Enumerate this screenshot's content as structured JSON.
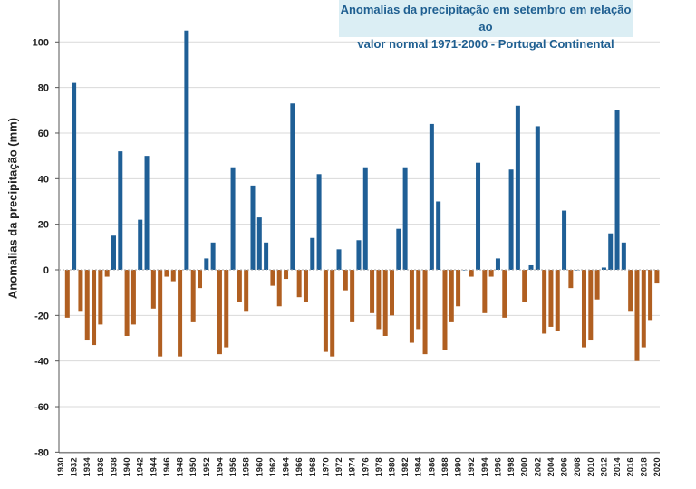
{
  "chart_data": {
    "type": "bar",
    "title_line1": "Anomalias da precipitação em setembro em relação ao",
    "title_line2": "valor normal  1971-2000 - Portugal Continental",
    "ylabel": "Anomalias da precipitação (mm)",
    "xlabel": "",
    "ylim": [
      -80,
      110
    ],
    "yticks": [
      100,
      80,
      60,
      40,
      20,
      0,
      -20,
      -40,
      -60,
      -80
    ],
    "xtick_labels": [
      "1930",
      "1932",
      "1934",
      "1936",
      "1938",
      "1940",
      "1942",
      "1944",
      "1946",
      "1948",
      "1950",
      "1952",
      "1954",
      "1956",
      "1958",
      "1960",
      "1962",
      "1964",
      "1966",
      "1968",
      "1970",
      "1972",
      "1974",
      "1976",
      "1978",
      "1980",
      "1982",
      "1984",
      "1986",
      "1988",
      "1990",
      "1992",
      "1994",
      "1996",
      "1998",
      "2000",
      "2002",
      "2004",
      "2006",
      "2008",
      "2010",
      "2012",
      "2014",
      "2016",
      "2018",
      "2020"
    ],
    "grid": true,
    "positive_color": "#1f5f96",
    "negative_color": "#b05f21",
    "years": [
      1931,
      1932,
      1933,
      1934,
      1935,
      1936,
      1937,
      1938,
      1939,
      1940,
      1941,
      1942,
      1943,
      1944,
      1945,
      1946,
      1947,
      1948,
      1949,
      1950,
      1951,
      1952,
      1953,
      1954,
      1955,
      1956,
      1957,
      1958,
      1959,
      1960,
      1961,
      1962,
      1963,
      1964,
      1965,
      1966,
      1967,
      1968,
      1969,
      1970,
      1971,
      1972,
      1973,
      1974,
      1975,
      1976,
      1977,
      1978,
      1979,
      1980,
      1981,
      1982,
      1983,
      1984,
      1985,
      1986,
      1987,
      1988,
      1989,
      1990,
      1991,
      1992,
      1993,
      1994,
      1995,
      1996,
      1997,
      1998,
      1999,
      2000,
      2001,
      2002,
      2003,
      2004,
      2005,
      2006,
      2007,
      2008,
      2009,
      2010,
      2011,
      2012,
      2013,
      2014,
      2015,
      2016,
      2017,
      2018,
      2019,
      2020
    ],
    "values": [
      -21,
      82,
      -18,
      -31,
      -33,
      -24,
      -3,
      15,
      52,
      -29,
      -24,
      22,
      50,
      -17,
      -38,
      -3,
      -5,
      -38,
      105,
      -23,
      -8,
      5,
      12,
      -37,
      -34,
      45,
      -14,
      -18,
      37,
      23,
      12,
      -7,
      -16,
      -4,
      73,
      -12,
      -14,
      14,
      42,
      -36,
      -38,
      9,
      -9,
      -23,
      13,
      45,
      -19,
      -26,
      -29,
      -20,
      18,
      45,
      -32,
      -26,
      -37,
      64,
      30,
      -35,
      -23,
      -16,
      0,
      -3,
      47,
      -19,
      -3,
      5,
      -21,
      44,
      72,
      -14,
      2,
      63,
      -28,
      -25,
      -27,
      26,
      -8,
      0,
      -34,
      -31,
      -13,
      1,
      16,
      70,
      12,
      -18,
      -40,
      -34,
      -22,
      -6
    ]
  }
}
